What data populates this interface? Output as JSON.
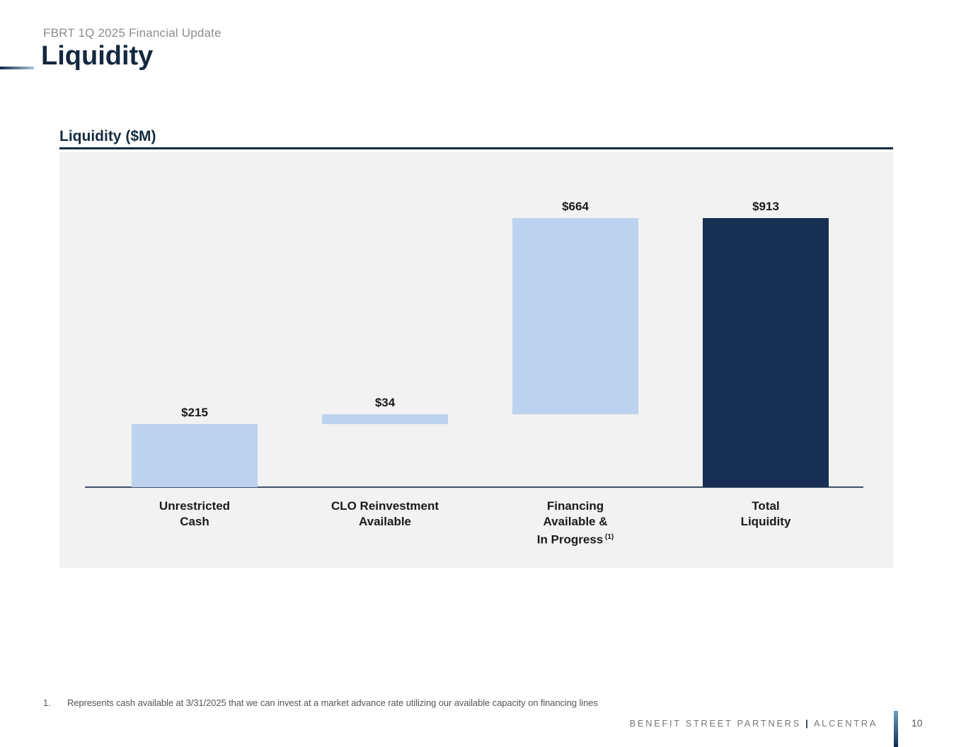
{
  "header": {
    "eyebrow": "FBRT 1Q 2025 Financial Update",
    "title": "Liquidity"
  },
  "chart": {
    "heading": "Liquidity ($M)"
  },
  "chart_data": {
    "type": "bar",
    "subtype": "waterfall",
    "title": "Liquidity ($M)",
    "xlabel": "",
    "ylabel": "",
    "unit": "$M",
    "ylim": [
      0,
      980
    ],
    "grid": false,
    "legend": false,
    "background": "#f1f2f1",
    "colors": {
      "component": "#bdd2ee",
      "total": "#172f52",
      "axis": "#3f5068"
    },
    "bars": [
      {
        "label_lines": [
          "Unrestricted",
          "Cash"
        ],
        "sup": "",
        "value": 215,
        "base": 0,
        "display_value": "$215",
        "color": "#bdd2ee"
      },
      {
        "label_lines": [
          "CLO Reinvestment",
          "Available"
        ],
        "sup": "",
        "value": 34,
        "base": 215,
        "display_value": "$34",
        "color": "#bdd2ee"
      },
      {
        "label_lines": [
          "Financing",
          "Available &",
          "In Progress"
        ],
        "sup": "(1)",
        "value": 664,
        "base": 249,
        "display_value": "$664",
        "color": "#bdd2ee"
      },
      {
        "label_lines": [
          "Total",
          "Liquidity"
        ],
        "sup": "",
        "value": 913,
        "base": 0,
        "display_value": "$913",
        "color": "#172f52"
      }
    ]
  },
  "footnote": {
    "index": "1.",
    "text": "Represents cash available at 3/31/2025 that we can invest at a market advance rate utilizing our available capacity on financing lines"
  },
  "footer": {
    "company": "BENEFIT STREET PARTNERS",
    "divider": "|",
    "brand": "ALCENTRA",
    "page_number": "10"
  }
}
